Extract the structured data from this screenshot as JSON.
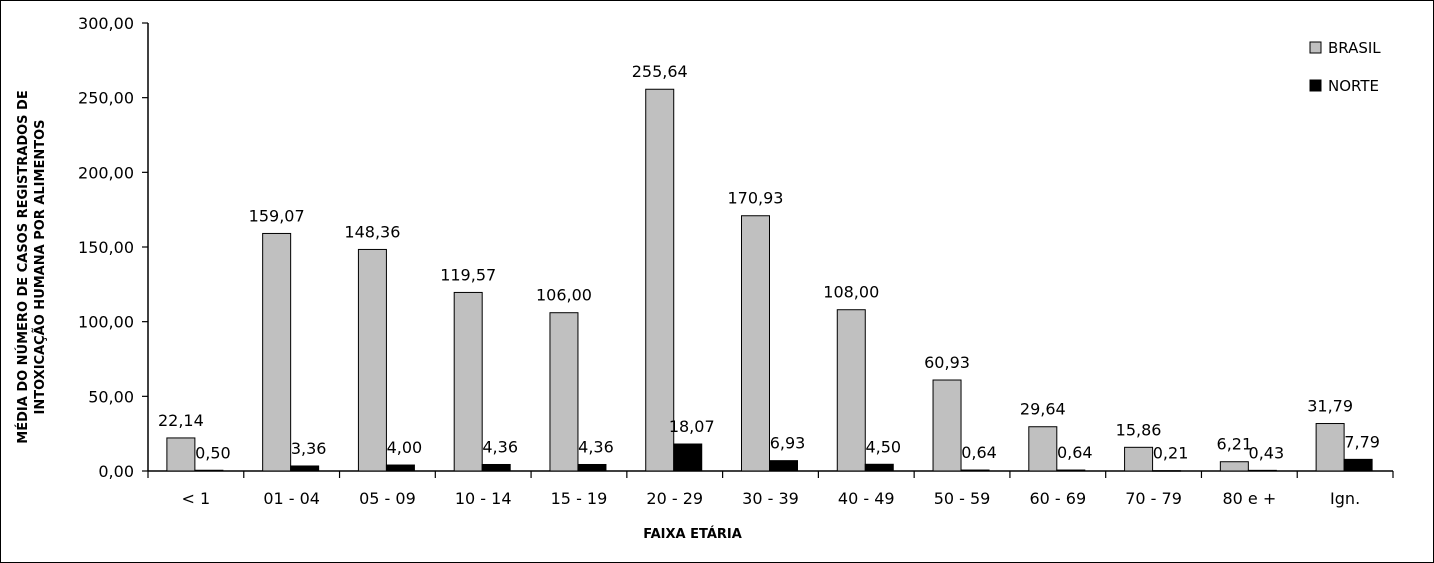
{
  "chart_data": {
    "type": "bar",
    "title": "",
    "xlabel": "FAIXA ETÁRIA",
    "ylabel_lines": [
      "MÉDIA DO NÚMERO DE CASOS REGISTRADOS DE",
      "INTOXICAÇÃO HUMANA POR ALIMENTOS"
    ],
    "ylim": [
      0,
      300
    ],
    "y_ticks": [
      0,
      50,
      100,
      150,
      200,
      250,
      300
    ],
    "y_tick_labels": [
      "0,00",
      "50,00",
      "100,00",
      "150,00",
      "200,00",
      "250,00",
      "300,00"
    ],
    "categories": [
      "< 1",
      "01 - 04",
      "05 - 09",
      "10 - 14",
      "15 - 19",
      "20 - 29",
      "30 - 39",
      "40 - 49",
      "50 - 59",
      "60 - 69",
      "70 - 79",
      "80 e +",
      "Ign."
    ],
    "series": [
      {
        "name": "BRASIL",
        "color": "#c0c0c0",
        "values": [
          22.14,
          159.07,
          148.36,
          119.57,
          106.0,
          255.64,
          170.93,
          108.0,
          60.93,
          29.64,
          15.86,
          6.21,
          31.79
        ],
        "labels": [
          "22,14",
          "159,07",
          "148,36",
          "119,57",
          "106,00",
          "255,64",
          "170,93",
          "108,00",
          "60,93",
          "29,64",
          "15,86",
          "6,21",
          "31,79"
        ]
      },
      {
        "name": "NORTE",
        "color": "#000000",
        "values": [
          0.5,
          3.36,
          4.0,
          4.36,
          4.36,
          18.07,
          6.93,
          4.5,
          0.64,
          0.64,
          0.21,
          0.43,
          7.79
        ],
        "labels": [
          "0,50",
          "3,36",
          "4,00",
          "4,36",
          "4,36",
          "18,07",
          "6,93",
          "4,50",
          "0,64",
          "0,64",
          "0,21",
          "0,43",
          "7,79"
        ]
      }
    ],
    "legend_position": "top-right",
    "grid": false
  }
}
